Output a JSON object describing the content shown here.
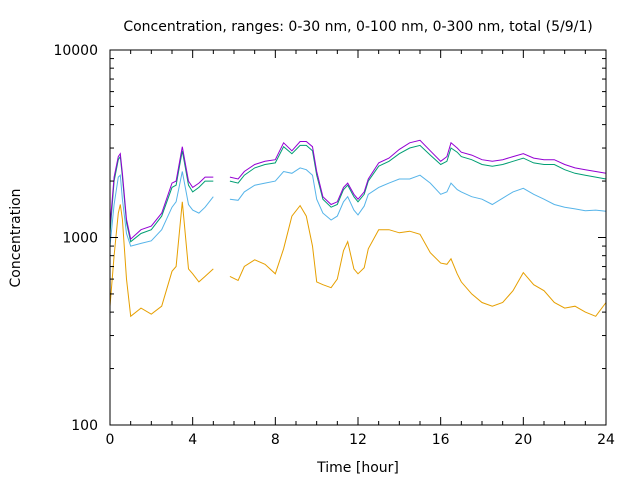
{
  "chart_data": {
    "type": "line",
    "title": "Concentration, ranges: 0-30 nm, 0-100 nm, 0-300 nm, total (5/9/1)",
    "xlabel": "Time [hour]",
    "ylabel": "Concentration",
    "xlim": [
      0,
      24
    ],
    "ylim": [
      100,
      10000
    ],
    "yscale": "log",
    "grid": false,
    "legend": "none",
    "x_ticks": [
      "0",
      "4",
      "8",
      "12",
      "16",
      "20",
      "24"
    ],
    "y_ticks": [
      "100",
      "1000",
      "10000"
    ],
    "x_tick_values": [
      0,
      4,
      8,
      12,
      16,
      20,
      24
    ],
    "y_tick_values": [
      100,
      1000,
      10000
    ],
    "x_minor_step": 1,
    "gap": [
      5.0,
      5.8
    ],
    "series": [
      {
        "color": "#e69f00",
        "x": [
          0,
          0.2,
          0.4,
          0.5,
          0.6,
          0.8,
          1,
          1.5,
          2,
          2.5,
          3,
          3.2,
          3.5,
          3.8,
          4,
          4.3,
          4.6,
          5,
          5.8,
          6.2,
          6.5,
          7,
          7.5,
          8,
          8.4,
          8.8,
          9.2,
          9.5,
          9.8,
          10,
          10.3,
          10.7,
          11,
          11.3,
          11.5,
          11.8,
          12,
          12.3,
          12.5,
          13,
          13.5,
          14,
          14.5,
          15,
          15.5,
          16,
          16.3,
          16.5,
          16.8,
          17,
          17.5,
          18,
          18.5,
          19,
          19.5,
          20,
          20.5,
          21,
          21.5,
          22,
          22.5,
          23,
          23.5,
          24
        ],
        "y": [
          430,
          800,
          1350,
          1500,
          1250,
          600,
          380,
          420,
          390,
          430,
          660,
          700,
          1550,
          680,
          640,
          580,
          620,
          680,
          620,
          590,
          700,
          760,
          720,
          640,
          870,
          1300,
          1480,
          1300,
          900,
          580,
          560,
          540,
          600,
          850,
          950,
          680,
          640,
          690,
          870,
          1100,
          1100,
          1060,
          1080,
          1040,
          830,
          730,
          720,
          770,
          640,
          580,
          500,
          450,
          430,
          450,
          520,
          650,
          560,
          520,
          450,
          420,
          430,
          400,
          380,
          450
        ]
      },
      {
        "color": "#56b4e9",
        "x": [
          0,
          0.2,
          0.4,
          0.5,
          0.6,
          0.8,
          1,
          1.5,
          2,
          2.5,
          3,
          3.2,
          3.5,
          3.8,
          4,
          4.3,
          4.6,
          5,
          5.8,
          6.2,
          6.5,
          7,
          7.5,
          8,
          8.4,
          8.8,
          9.2,
          9.5,
          9.8,
          10,
          10.3,
          10.7,
          11,
          11.3,
          11.5,
          11.8,
          12,
          12.3,
          12.5,
          13,
          13.5,
          14,
          14.5,
          15,
          15.5,
          16,
          16.3,
          16.5,
          16.8,
          17,
          17.5,
          18,
          18.5,
          19,
          19.5,
          20,
          20.5,
          21,
          21.5,
          22,
          22.5,
          23,
          23.5,
          24
        ],
        "y": [
          900,
          1500,
          2100,
          2150,
          1600,
          1050,
          900,
          930,
          960,
          1100,
          1450,
          1550,
          2250,
          1500,
          1400,
          1350,
          1450,
          1650,
          1600,
          1580,
          1750,
          1900,
          1950,
          2000,
          2250,
          2200,
          2350,
          2300,
          2150,
          1600,
          1350,
          1240,
          1300,
          1550,
          1650,
          1400,
          1320,
          1470,
          1700,
          1850,
          1950,
          2050,
          2050,
          2150,
          1950,
          1700,
          1750,
          1950,
          1800,
          1750,
          1650,
          1600,
          1500,
          1620,
          1750,
          1830,
          1700,
          1600,
          1500,
          1450,
          1420,
          1390,
          1400,
          1380
        ]
      },
      {
        "color": "#009e73",
        "x": [
          0,
          0.2,
          0.4,
          0.5,
          0.6,
          0.8,
          1,
          1.5,
          2,
          2.5,
          3,
          3.2,
          3.5,
          3.8,
          4,
          4.3,
          4.6,
          5,
          5.8,
          6.2,
          6.5,
          7,
          7.5,
          8,
          8.4,
          8.8,
          9.2,
          9.5,
          9.8,
          10,
          10.3,
          10.7,
          11,
          11.3,
          11.5,
          11.8,
          12,
          12.3,
          12.5,
          13,
          13.5,
          14,
          14.5,
          15,
          15.5,
          16,
          16.3,
          16.5,
          16.8,
          17,
          17.5,
          18,
          18.5,
          19,
          19.5,
          20,
          20.5,
          21,
          21.5,
          22,
          22.5,
          23,
          23.5,
          24
        ],
        "y": [
          1050,
          2000,
          2600,
          2700,
          2100,
          1200,
          950,
          1050,
          1100,
          1300,
          1850,
          1900,
          2900,
          1900,
          1750,
          1850,
          2000,
          2000,
          2000,
          1950,
          2150,
          2350,
          2450,
          2500,
          3050,
          2800,
          3100,
          3100,
          2900,
          2150,
          1600,
          1450,
          1500,
          1800,
          1900,
          1650,
          1550,
          1700,
          2000,
          2400,
          2550,
          2800,
          3000,
          3100,
          2750,
          2450,
          2550,
          3000,
          2850,
          2700,
          2600,
          2450,
          2400,
          2450,
          2550,
          2650,
          2500,
          2450,
          2450,
          2300,
          2200,
          2150,
          2100,
          2050
        ]
      },
      {
        "color": "#9400d3",
        "x": [
          0,
          0.2,
          0.4,
          0.5,
          0.6,
          0.8,
          1,
          1.5,
          2,
          2.5,
          3,
          3.2,
          3.5,
          3.8,
          4,
          4.3,
          4.6,
          5,
          5.8,
          6.2,
          6.5,
          7,
          7.5,
          8,
          8.4,
          8.8,
          9.2,
          9.5,
          9.8,
          10,
          10.3,
          10.7,
          11,
          11.3,
          11.5,
          11.8,
          12,
          12.3,
          12.5,
          13,
          13.5,
          14,
          14.5,
          15,
          15.5,
          16,
          16.3,
          16.5,
          16.8,
          17,
          17.5,
          18,
          18.5,
          19,
          19.5,
          20,
          20.5,
          21,
          21.5,
          22,
          22.5,
          23,
          23.5,
          24
        ],
        "y": [
          1150,
          2100,
          2700,
          2800,
          2200,
          1250,
          980,
          1100,
          1150,
          1350,
          1950,
          2000,
          3050,
          2000,
          1850,
          1950,
          2100,
          2100,
          2100,
          2050,
          2250,
          2450,
          2550,
          2600,
          3200,
          2900,
          3250,
          3250,
          3050,
          2250,
          1650,
          1500,
          1550,
          1850,
          1950,
          1700,
          1600,
          1750,
          2050,
          2500,
          2650,
          2950,
          3200,
          3300,
          2900,
          2550,
          2700,
          3200,
          3000,
          2850,
          2750,
          2600,
          2550,
          2600,
          2700,
          2800,
          2650,
          2600,
          2600,
          2450,
          2350,
          2300,
          2250,
          2200
        ]
      }
    ]
  }
}
